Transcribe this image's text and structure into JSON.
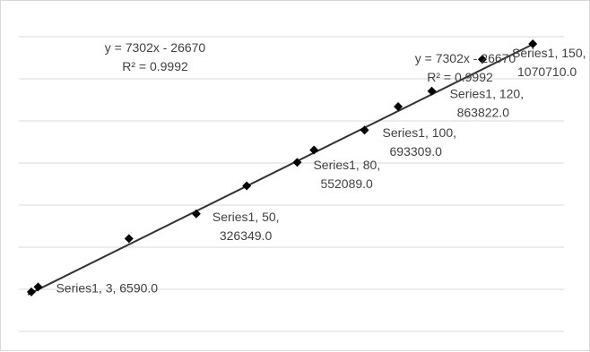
{
  "chart_data": {
    "type": "scatter",
    "title": "",
    "xlabel": "",
    "ylabel": "",
    "grid": true,
    "series": [
      {
        "name": "Series1",
        "points": [
          {
            "x": 1,
            "y": -15000,
            "label": ""
          },
          {
            "x": 3,
            "y": 6590,
            "label": "Series1, 3, 6590.0"
          },
          {
            "x": 30,
            "y": 218000,
            "label": ""
          },
          {
            "x": 50,
            "y": 326349,
            "label": "Series1, 50, 326349.0"
          },
          {
            "x": 65,
            "y": 449000,
            "label": ""
          },
          {
            "x": 80,
            "y": 552089,
            "label": "Series1, 80, 552089.0"
          },
          {
            "x": 85,
            "y": 606000,
            "label": ""
          },
          {
            "x": 100,
            "y": 693309,
            "label": "Series1, 100, 693309.0"
          },
          {
            "x": 110,
            "y": 796000,
            "label": ""
          },
          {
            "x": 120,
            "y": 863822,
            "label": "Series1, 120, 863822.0"
          },
          {
            "x": 135,
            "y": 1003000,
            "label": ""
          },
          {
            "x": 150,
            "y": 1070710,
            "label": "Series1, 150, 1070710.0"
          }
        ]
      }
    ],
    "trendline": {
      "slope": 7302,
      "intercept": -26670,
      "x_start": 0,
      "x_end": 150
    },
    "annotations": [
      {
        "equation": "y = 7302x - 26670",
        "r2": "R² = 0.9992"
      },
      {
        "equation": "y = 7302x - 26670",
        "r2": "R² = 0.9992"
      }
    ]
  }
}
